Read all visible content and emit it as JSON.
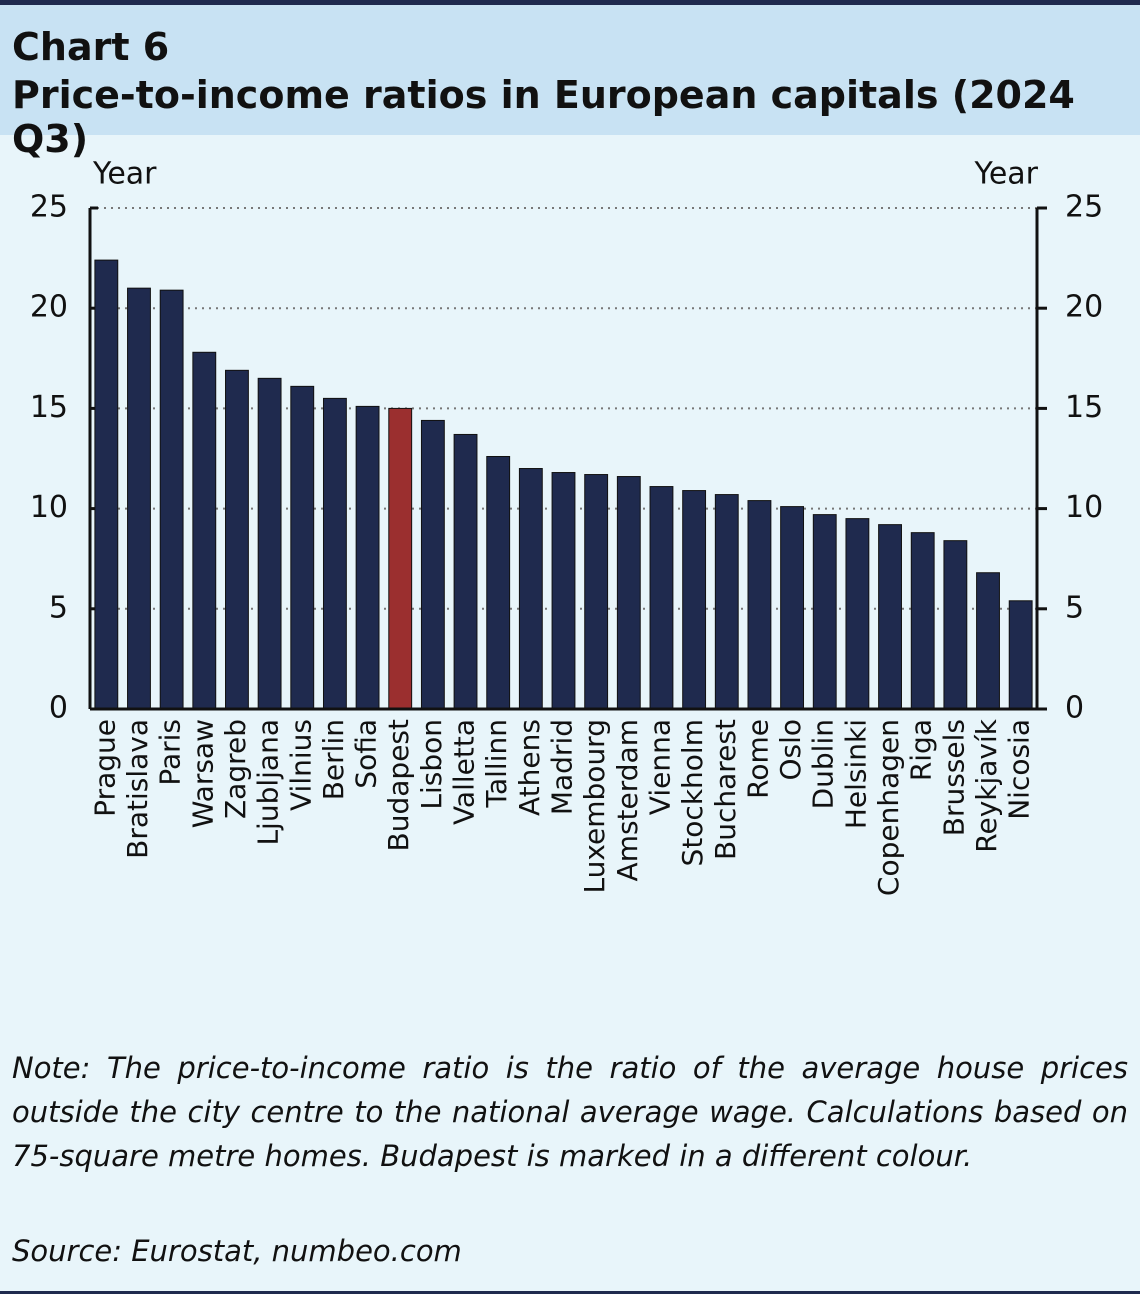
{
  "chart_data": {
    "type": "bar",
    "chart_label": "Chart 6",
    "title": "Price-to-income ratios in European capitals (2024 Q3)",
    "y_label": "Year",
    "y2_label": "Year",
    "categories": [
      "Prague",
      "Bratislava",
      "Paris",
      "Warsaw",
      "Zagreb",
      "Ljubljana",
      "Vilnius",
      "Berlin",
      "Sofia",
      "Budapest",
      "Lisbon",
      "Valletta",
      "Tallinn",
      "Athens",
      "Madrid",
      "Luxembourg",
      "Amsterdam",
      "Vienna",
      "Stockholm",
      "Bucharest",
      "Rome",
      "Oslo",
      "Dublin",
      "Helsinki",
      "Copenhagen",
      "Riga",
      "Brussels",
      "Reykjavík",
      "Nicosia"
    ],
    "values": [
      22.4,
      21.0,
      20.9,
      17.8,
      16.9,
      16.5,
      16.1,
      15.5,
      15.1,
      15.0,
      14.4,
      13.7,
      12.6,
      12.0,
      11.8,
      11.7,
      11.6,
      11.1,
      10.9,
      10.7,
      10.4,
      10.1,
      9.7,
      9.5,
      9.2,
      8.8,
      8.4,
      6.8,
      5.4
    ],
    "colors": [
      "#1f2a4e",
      "#1f2a4e",
      "#1f2a4e",
      "#1f2a4e",
      "#1f2a4e",
      "#1f2a4e",
      "#1f2a4e",
      "#1f2a4e",
      "#1f2a4e",
      "#9b2f2f",
      "#1f2a4e",
      "#1f2a4e",
      "#1f2a4e",
      "#1f2a4e",
      "#1f2a4e",
      "#1f2a4e",
      "#1f2a4e",
      "#1f2a4e",
      "#1f2a4e",
      "#1f2a4e",
      "#1f2a4e",
      "#1f2a4e",
      "#1f2a4e",
      "#1f2a4e",
      "#1f2a4e",
      "#1f2a4e",
      "#1f2a4e",
      "#1f2a4e",
      "#1f2a4e"
    ],
    "ylim": [
      0,
      25
    ],
    "yticks": [
      0,
      5,
      10,
      15,
      20,
      25
    ],
    "y2lim": [
      0,
      25
    ],
    "y2ticks": [
      0,
      5,
      10,
      15,
      20,
      25
    ],
    "grid": true,
    "note": "Note: The price-to-income ratio is the ratio of the average house prices outside the city centre to the national average wage. Calculations based on 75-square metre homes. Budapest is marked in a different colour.",
    "source": "Source: Eurostat, numbeo.com"
  }
}
